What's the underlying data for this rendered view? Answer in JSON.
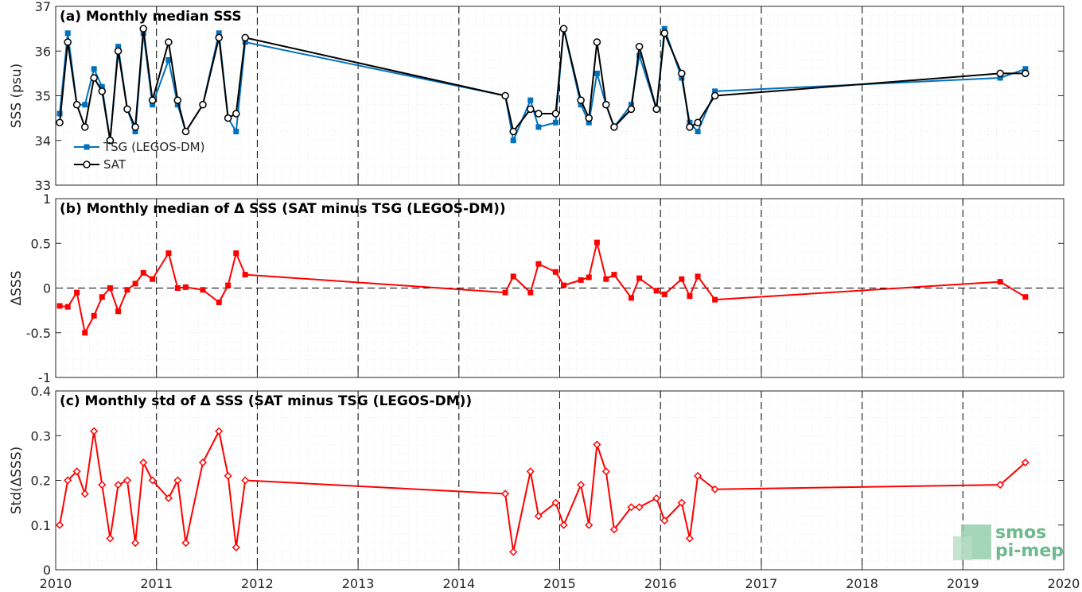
{
  "chart_data": [
    {
      "type": "line",
      "title": "(a) Monthly median SSS",
      "ylabel": "SSS (psu)",
      "xlim": [
        2010,
        2020
      ],
      "ylim": [
        33,
        37
      ],
      "yticks": [
        33,
        34,
        35,
        36,
        37
      ],
      "grid": true,
      "legend": "bottom-left",
      "series": [
        {
          "name": "TSG (LEGOS-DM)",
          "color": "#0072bd",
          "marker": "square",
          "x": [
            2010.04,
            2010.12,
            2010.21,
            2010.29,
            2010.38,
            2010.46,
            2010.54,
            2010.62,
            2010.71,
            2010.79,
            2010.87,
            2010.96,
            2011.12,
            2011.21,
            2011.29,
            2011.46,
            2011.62,
            2011.71,
            2011.79,
            2011.88,
            2014.46,
            2014.54,
            2014.71,
            2014.79,
            2014.96,
            2015.04,
            2015.21,
            2015.29,
            2015.37,
            2015.46,
            2015.54,
            2015.71,
            2015.79,
            2015.96,
            2016.04,
            2016.21,
            2016.29,
            2016.37,
            2016.54,
            2019.37,
            2019.62
          ],
          "y": [
            34.6,
            36.4,
            34.8,
            34.8,
            35.6,
            35.2,
            34.0,
            36.1,
            34.7,
            34.2,
            36.4,
            34.8,
            35.8,
            34.8,
            34.2,
            34.8,
            36.4,
            34.5,
            34.2,
            36.2,
            35.0,
            34.0,
            34.9,
            34.3,
            34.4,
            36.5,
            34.8,
            34.4,
            35.5,
            34.8,
            34.3,
            34.8,
            35.9,
            34.7,
            36.5,
            35.4,
            34.4,
            34.2,
            35.1,
            35.4,
            35.6
          ]
        },
        {
          "name": "SAT",
          "color": "#000000",
          "marker": "circle",
          "x": [
            2010.04,
            2010.12,
            2010.21,
            2010.29,
            2010.38,
            2010.46,
            2010.54,
            2010.62,
            2010.71,
            2010.79,
            2010.87,
            2010.96,
            2011.12,
            2011.21,
            2011.29,
            2011.46,
            2011.62,
            2011.71,
            2011.79,
            2011.88,
            2014.46,
            2014.54,
            2014.71,
            2014.79,
            2014.96,
            2015.04,
            2015.21,
            2015.29,
            2015.37,
            2015.46,
            2015.54,
            2015.71,
            2015.79,
            2015.96,
            2016.04,
            2016.21,
            2016.29,
            2016.37,
            2016.54,
            2019.37,
            2019.62
          ],
          "y": [
            34.4,
            36.2,
            34.8,
            34.3,
            35.4,
            35.1,
            34.0,
            36.0,
            34.7,
            34.3,
            36.5,
            34.9,
            36.2,
            34.9,
            34.2,
            34.8,
            36.3,
            34.5,
            34.6,
            36.3,
            35.0,
            34.2,
            34.7,
            34.6,
            34.6,
            36.5,
            34.9,
            34.5,
            36.2,
            34.8,
            34.3,
            34.7,
            36.1,
            34.7,
            36.4,
            35.5,
            34.3,
            34.4,
            35.0,
            35.5,
            35.5
          ]
        }
      ]
    },
    {
      "type": "line",
      "title": "(b) Monthly median of Δ SSS (SAT minus TSG (LEGOS-DM))",
      "ylabel": "ΔSSS",
      "xlim": [
        2010,
        2020
      ],
      "ylim": [
        -1,
        1
      ],
      "yticks": [
        -1,
        -0.5,
        0,
        0.5,
        1
      ],
      "grid": true,
      "zero_line": true,
      "series": [
        {
          "color": "#ff0000",
          "marker": "square",
          "x": [
            2010.04,
            2010.12,
            2010.21,
            2010.29,
            2010.38,
            2010.46,
            2010.54,
            2010.62,
            2010.71,
            2010.79,
            2010.87,
            2010.96,
            2011.12,
            2011.21,
            2011.29,
            2011.46,
            2011.62,
            2011.71,
            2011.79,
            2011.88,
            2014.46,
            2014.54,
            2014.71,
            2014.79,
            2014.96,
            2015.04,
            2015.21,
            2015.29,
            2015.37,
            2015.46,
            2015.54,
            2015.71,
            2015.79,
            2015.96,
            2016.04,
            2016.21,
            2016.29,
            2016.37,
            2016.54,
            2019.37,
            2019.62
          ],
          "y": [
            -0.2,
            -0.21,
            -0.05,
            -0.5,
            -0.31,
            -0.1,
            0.0,
            -0.26,
            -0.02,
            0.05,
            0.17,
            0.1,
            0.39,
            0.0,
            0.01,
            -0.02,
            -0.16,
            0.03,
            0.39,
            0.15,
            -0.05,
            0.13,
            -0.05,
            0.27,
            0.18,
            0.03,
            0.09,
            0.12,
            0.51,
            0.1,
            0.15,
            -0.11,
            0.11,
            -0.03,
            -0.07,
            0.1,
            -0.09,
            0.13,
            -0.13,
            0.07,
            -0.1
          ]
        }
      ]
    },
    {
      "type": "line",
      "title": "(c) Monthly std of Δ SSS (SAT minus TSG (LEGOS-DM))",
      "ylabel": "Std(ΔSSS)",
      "xlim": [
        2010,
        2020
      ],
      "ylim": [
        0,
        0.4
      ],
      "yticks": [
        0,
        0.1,
        0.2,
        0.3,
        0.4
      ],
      "xticks": [
        2010,
        2011,
        2012,
        2013,
        2014,
        2015,
        2016,
        2017,
        2018,
        2019,
        2020
      ],
      "grid": true,
      "series": [
        {
          "color": "#ff0000",
          "marker": "diamond",
          "x": [
            2010.04,
            2010.12,
            2010.21,
            2010.29,
            2010.38,
            2010.46,
            2010.54,
            2010.62,
            2010.71,
            2010.79,
            2010.87,
            2010.96,
            2011.12,
            2011.21,
            2011.29,
            2011.46,
            2011.62,
            2011.71,
            2011.79,
            2011.88,
            2014.46,
            2014.54,
            2014.71,
            2014.79,
            2014.96,
            2015.04,
            2015.21,
            2015.29,
            2015.37,
            2015.46,
            2015.54,
            2015.71,
            2015.79,
            2015.96,
            2016.04,
            2016.21,
            2016.29,
            2016.37,
            2016.54,
            2019.37,
            2019.62
          ],
          "y": [
            0.1,
            0.2,
            0.22,
            0.17,
            0.31,
            0.19,
            0.07,
            0.19,
            0.2,
            0.06,
            0.24,
            0.2,
            0.16,
            0.2,
            0.06,
            0.24,
            0.31,
            0.21,
            0.05,
            0.2,
            0.17,
            0.04,
            0.22,
            0.12,
            0.15,
            0.1,
            0.19,
            0.1,
            0.28,
            0.22,
            0.09,
            0.14,
            0.14,
            0.16,
            0.11,
            0.15,
            0.07,
            0.21,
            0.18,
            0.19,
            0.24
          ]
        }
      ]
    }
  ],
  "logo": {
    "line1": "smos",
    "line2": "pi-mep",
    "color": "#6fb98f"
  }
}
